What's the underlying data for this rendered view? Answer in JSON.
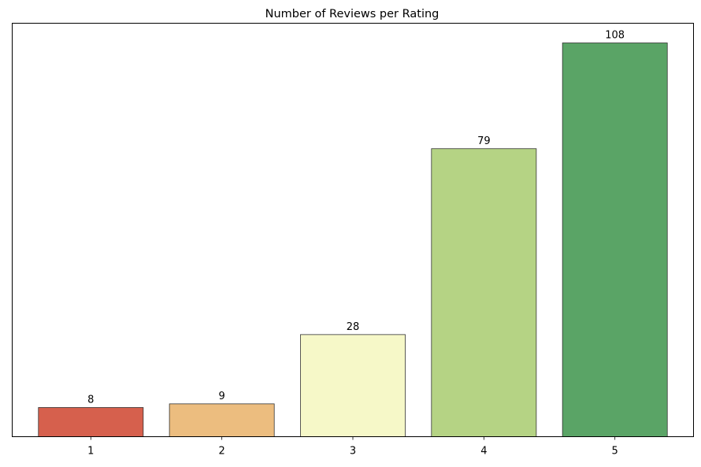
{
  "chart_data": {
    "type": "bar",
    "title": "Number of Reviews per Rating",
    "xlabel": "",
    "ylabel": "",
    "categories": [
      "1",
      "2",
      "3",
      "4",
      "5"
    ],
    "values": [
      8,
      9,
      28,
      79,
      108
    ],
    "data_labels": [
      "8",
      "9",
      "28",
      "79",
      "108"
    ],
    "ylim": [
      0,
      113.4
    ],
    "y_axis_visible": false,
    "grid": false,
    "legend": "none",
    "colors": [
      "#d6604d",
      "#ecbd7f",
      "#f6f8c8",
      "#b5d384",
      "#5aa466"
    ],
    "edge_color": "#333333"
  }
}
